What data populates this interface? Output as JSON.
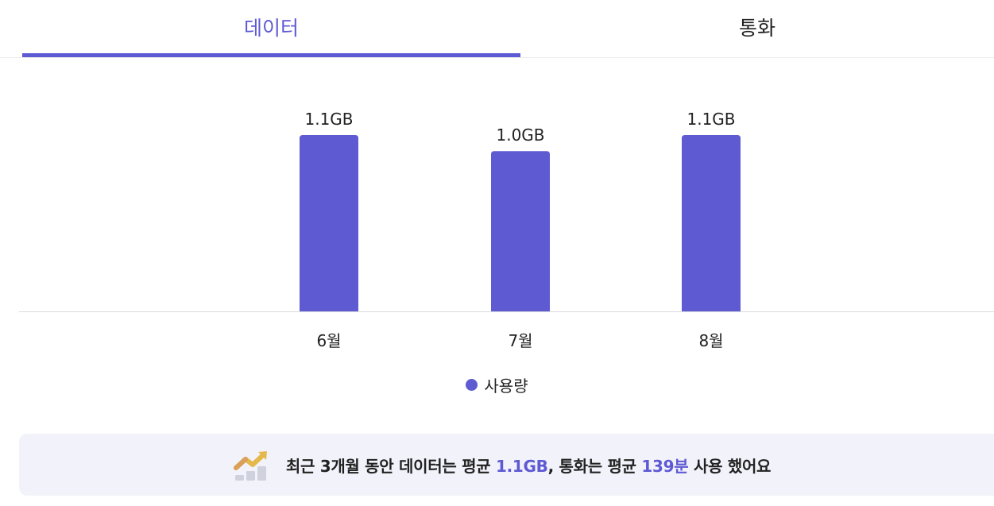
{
  "tabs": {
    "data_label": "데이터",
    "call_label": "통화",
    "active": "데이터"
  },
  "colors": {
    "accent": "#5e5ad3",
    "bar": "#5e5bd2",
    "summary_bg": "#f2f2fa"
  },
  "chart_data": {
    "type": "bar",
    "categories": [
      "6월",
      "7월",
      "8월"
    ],
    "values": [
      1.1,
      1.0,
      1.1
    ],
    "data_labels": [
      "1.1GB",
      "1.0GB",
      "1.1GB"
    ],
    "series": [
      {
        "name": "사용량",
        "values": [
          1.1,
          1.0,
          1.1
        ]
      }
    ],
    "unit": "GB",
    "grid": false,
    "legend": "bottom-center"
  },
  "legend": {
    "label": "사용량"
  },
  "summary": {
    "icon": "trend-chart-icon",
    "prefix": "최근 3개월 동안 데이터는 평균 ",
    "data_avg": "1.1GB",
    "middle": ", 통화는 평균 ",
    "call_avg": "139분",
    "suffix": " 사용 했어요"
  }
}
